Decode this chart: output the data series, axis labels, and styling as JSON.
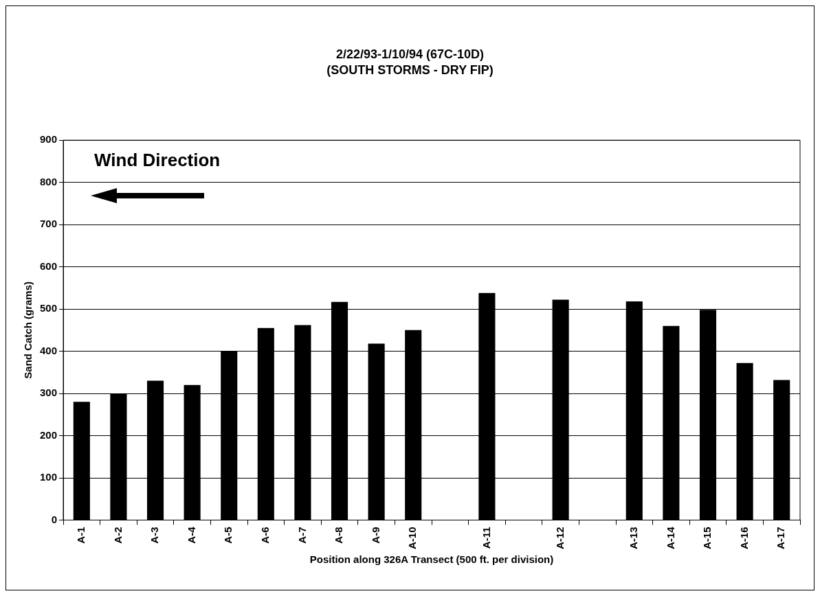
{
  "chart_data": {
    "type": "bar",
    "title": "2/22/93-1/10/94 (67C-10D)",
    "subtitle": "(SOUTH STORMS - DRY FIP)",
    "xlabel": "Position along 326A Transect (500 ft. per division)",
    "ylabel": "Sand Catch (grams)",
    "categories": [
      "A-1",
      "A-2",
      "A-3",
      "A-4",
      "A-5",
      "A-6",
      "A-7",
      "A-8",
      "A-9",
      "A-10",
      null,
      "A-11",
      null,
      "A-12",
      null,
      "A-13",
      "A-14",
      "A-15",
      "A-16",
      "A-17"
    ],
    "values": [
      280,
      300,
      330,
      320,
      400,
      455,
      462,
      517,
      418,
      450,
      null,
      538,
      null,
      522,
      null,
      518,
      460,
      498,
      372,
      332
    ],
    "color": "#000000",
    "ylim": [
      0,
      900
    ],
    "yticks": [
      0,
      100,
      200,
      300,
      400,
      500,
      600,
      700,
      800,
      900
    ],
    "grid": "y",
    "legend": false,
    "annotations": [
      "Wind Direction"
    ]
  }
}
